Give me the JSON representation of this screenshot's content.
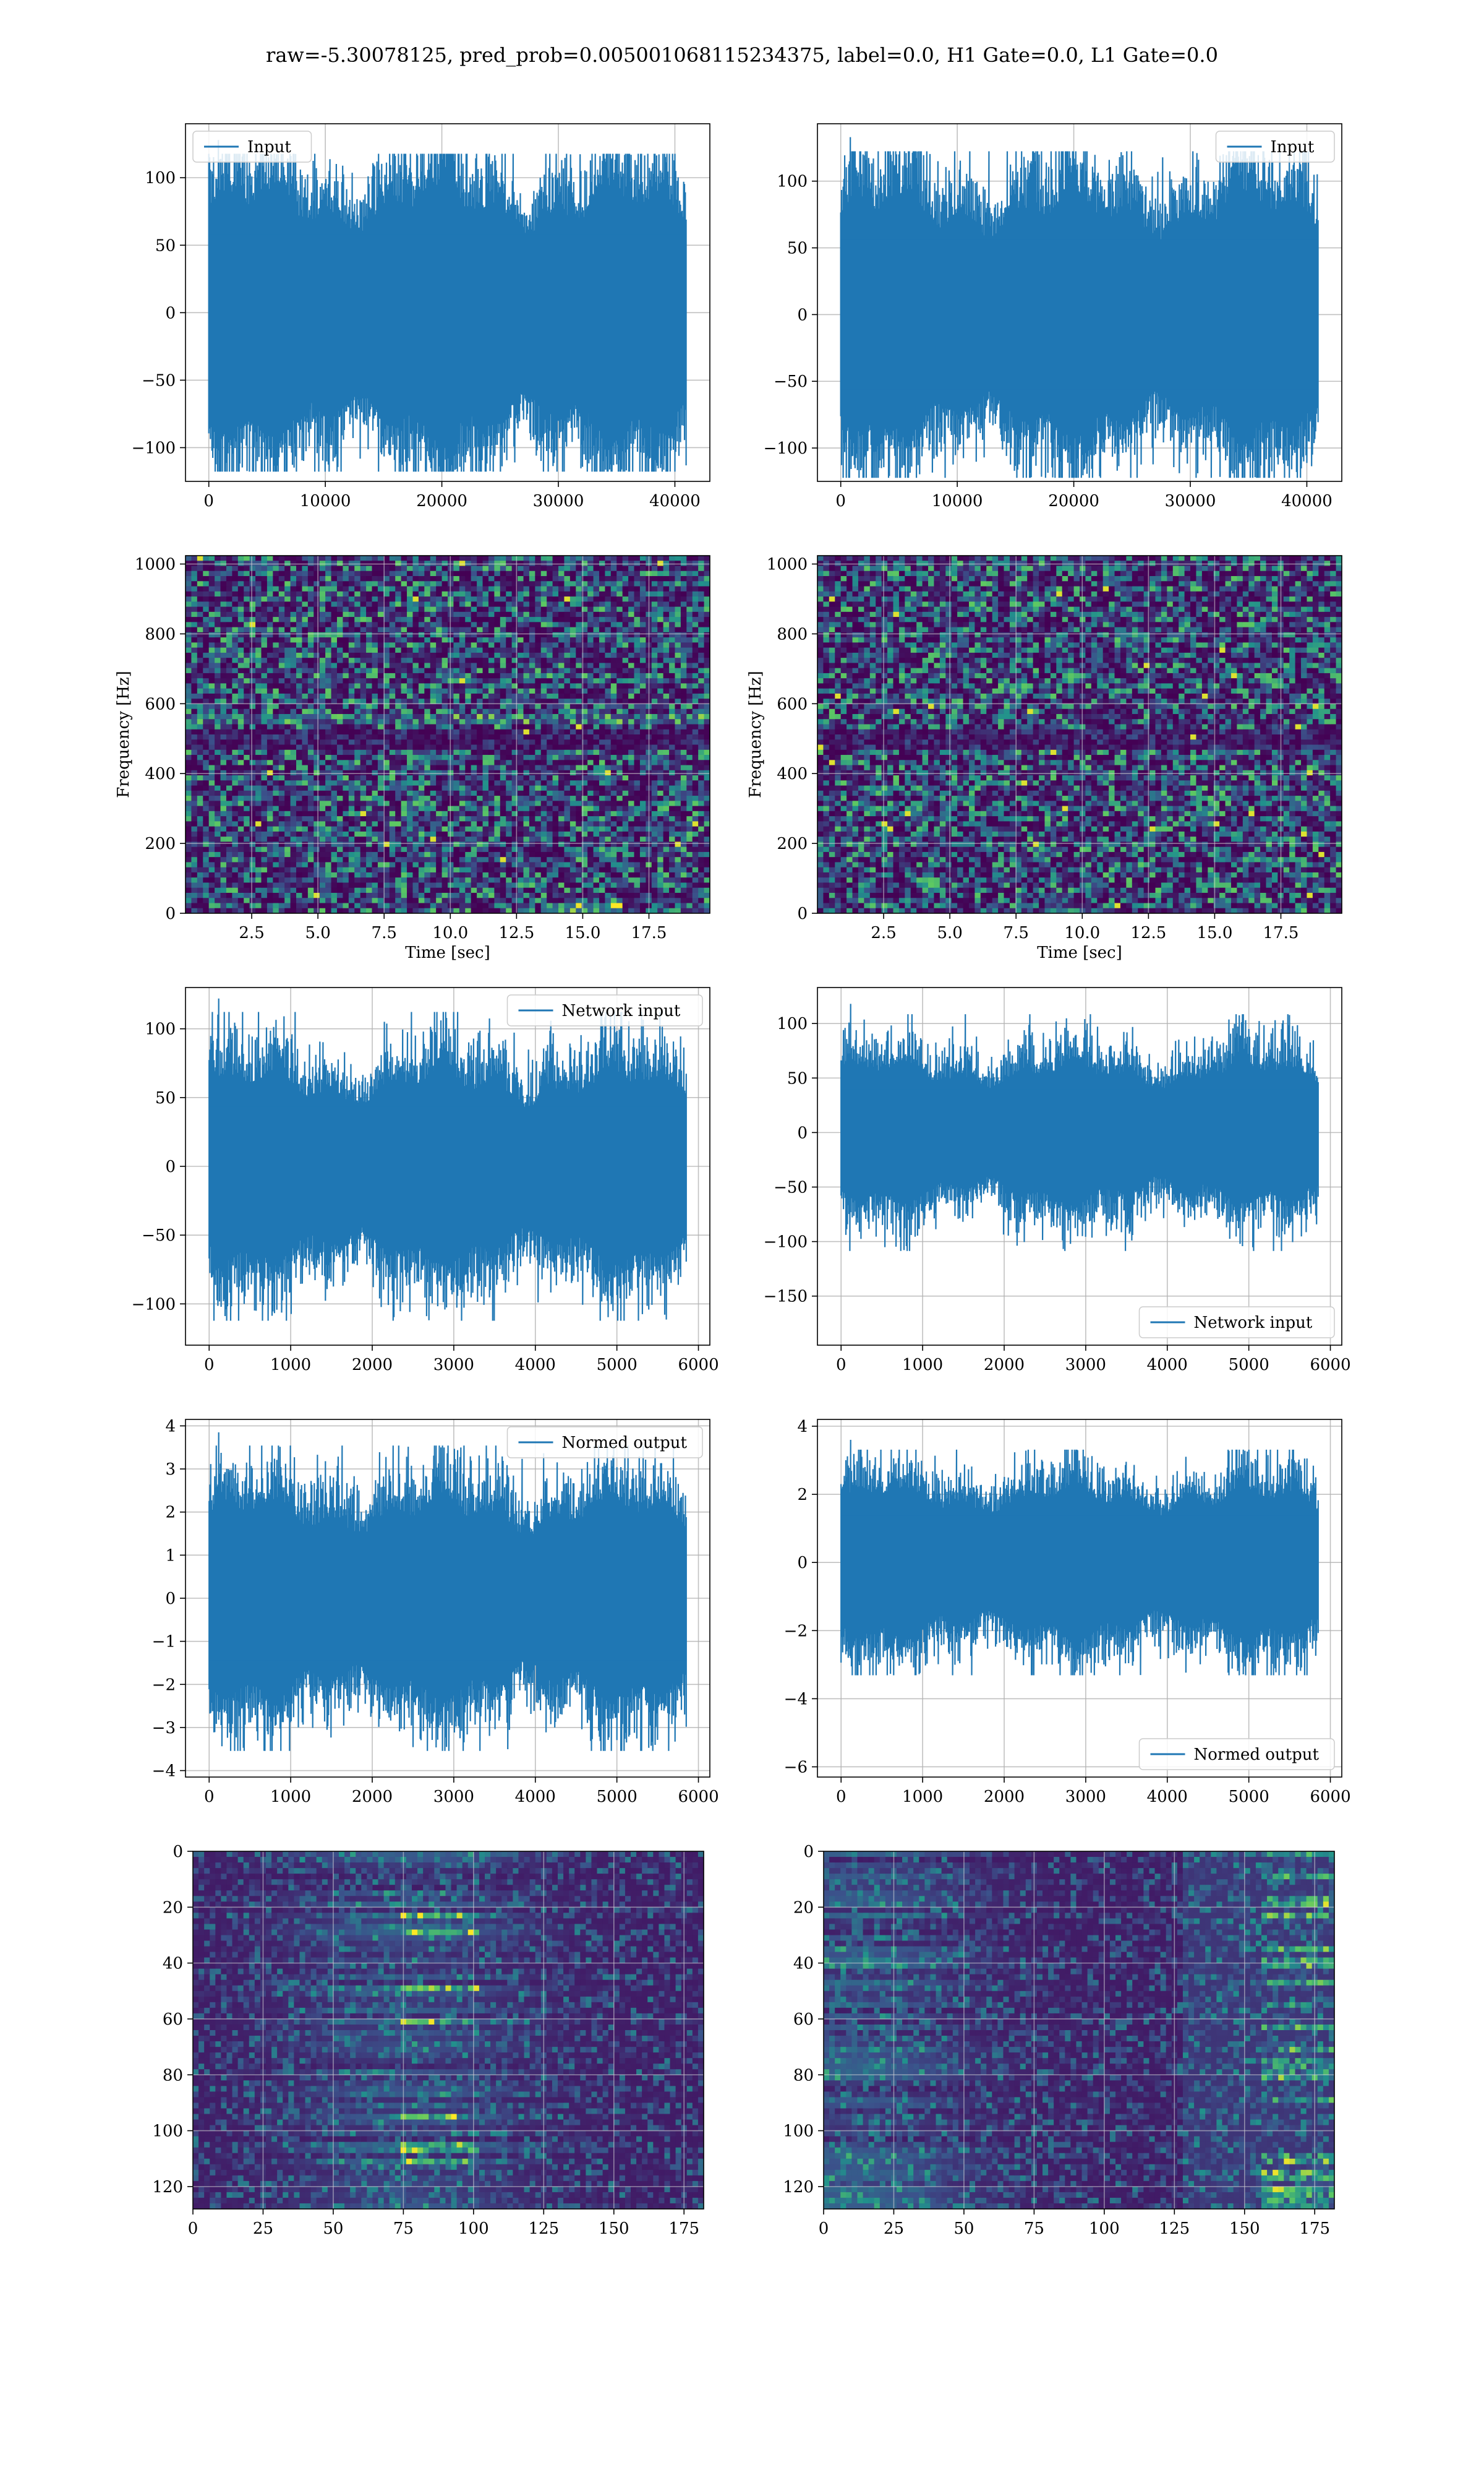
{
  "figure": {
    "title": "raw=-5.30078125, pred_prob=0.005001068115234375, label=0.0, H1 Gate=0.0, L1 Gate=0.0"
  },
  "colors": {
    "line": "#1f77b4",
    "grid": "#b0b0b0",
    "viridis_dark": "#440154",
    "viridis_mid": "#21918c",
    "viridis_bright": "#fde725"
  },
  "chart_data": [
    {
      "id": "h1-input",
      "type": "line",
      "style": "noise",
      "xlim": [
        -2000,
        43000
      ],
      "ylim": [
        -125,
        140
      ],
      "xticks": [
        0,
        10000,
        20000,
        30000,
        40000
      ],
      "yticks": [
        -100,
        -50,
        0,
        50,
        100
      ],
      "data_x": [
        0,
        40960
      ],
      "amplitude": 80,
      "spike": 128,
      "n": 600,
      "legend": "Input",
      "legend_pos": "upper-left",
      "ylabel": "",
      "xlabel": ""
    },
    {
      "id": "l1-input",
      "type": "line",
      "style": "noise",
      "xlim": [
        -2000,
        43000
      ],
      "ylim": [
        -125,
        143
      ],
      "xticks": [
        0,
        10000,
        20000,
        30000,
        40000
      ],
      "yticks": [
        -100,
        -50,
        0,
        50,
        100
      ],
      "data_x": [
        0,
        40960
      ],
      "amplitude": 78,
      "spike": 133,
      "n": 600,
      "legend": "Input",
      "legend_pos": "upper-right",
      "ylabel": "",
      "xlabel": ""
    },
    {
      "id": "h1-spectrogram",
      "type": "heatmap",
      "style": "spectrogram",
      "xlim": [
        0,
        19.8
      ],
      "ylim": [
        0,
        1024
      ],
      "xticks": [
        2.5,
        5.0,
        7.5,
        10.0,
        12.5,
        15.0,
        17.5
      ],
      "xtick_labels": [
        "2.5",
        "5.0",
        "7.5",
        "10.0",
        "12.5",
        "15.0",
        "17.5"
      ],
      "yticks": [
        0,
        200,
        400,
        600,
        800,
        1000
      ],
      "cols": 90,
      "rows": 70,
      "xlabel": "Time [sec]",
      "ylabel": "Frequency [Hz]"
    },
    {
      "id": "l1-spectrogram",
      "type": "heatmap",
      "style": "spectrogram",
      "xlim": [
        0,
        19.8
      ],
      "ylim": [
        0,
        1024
      ],
      "xticks": [
        2.5,
        5.0,
        7.5,
        10.0,
        12.5,
        15.0,
        17.5
      ],
      "xtick_labels": [
        "2.5",
        "5.0",
        "7.5",
        "10.0",
        "12.5",
        "15.0",
        "17.5"
      ],
      "yticks": [
        0,
        200,
        400,
        600,
        800,
        1000
      ],
      "cols": 90,
      "rows": 70,
      "xlabel": "Time [sec]",
      "ylabel": "Frequency [Hz]"
    },
    {
      "id": "h1-network-input",
      "type": "line",
      "style": "noise",
      "xlim": [
        -290,
        6140
      ],
      "ylim": [
        -130,
        130
      ],
      "xticks": [
        0,
        1000,
        2000,
        3000,
        4000,
        5000,
        6000
      ],
      "yticks": [
        -100,
        -50,
        0,
        50,
        100
      ],
      "data_x": [
        0,
        5850
      ],
      "amplitude": 60,
      "spike": 122,
      "n": 600,
      "legend": "Network input",
      "legend_pos": "upper-right",
      "ylabel": "",
      "xlabel": ""
    },
    {
      "id": "l1-network-input",
      "type": "line",
      "style": "noise",
      "xlim": [
        -290,
        6140
      ],
      "ylim": [
        -195,
        133
      ],
      "xticks": [
        0,
        1000,
        2000,
        3000,
        4000,
        5000,
        6000
      ],
      "yticks": [
        -150,
        -100,
        -50,
        0,
        50,
        100
      ],
      "data_x": [
        0,
        5850
      ],
      "amplitude": 55,
      "spike": 118,
      "n": 600,
      "legend": "Network input",
      "legend_pos": "lower-right",
      "ylabel": "",
      "xlabel": ""
    },
    {
      "id": "h1-normed-output",
      "type": "line",
      "style": "noise",
      "xlim": [
        -290,
        6140
      ],
      "ylim": [
        -4.15,
        4.15
      ],
      "xticks": [
        0,
        1000,
        2000,
        3000,
        4000,
        5000,
        6000
      ],
      "yticks": [
        -4,
        -3,
        -2,
        -1,
        0,
        1,
        2,
        3,
        4
      ],
      "data_x": [
        0,
        5850
      ],
      "amplitude": 2.0,
      "spike": 3.85,
      "n": 600,
      "legend": "Normed output",
      "legend_pos": "upper-right",
      "ylabel": "",
      "xlabel": ""
    },
    {
      "id": "l1-normed-output",
      "type": "line",
      "style": "noise",
      "xlim": [
        -290,
        6140
      ],
      "ylim": [
        -6.3,
        4.2
      ],
      "xticks": [
        0,
        1000,
        2000,
        3000,
        4000,
        5000,
        6000
      ],
      "yticks": [
        -6,
        -4,
        -2,
        0,
        2,
        4
      ],
      "data_x": [
        0,
        5850
      ],
      "amplitude": 1.9,
      "spike": 3.6,
      "n": 600,
      "legend": "Normed output",
      "legend_pos": "lower-right",
      "ylabel": "",
      "xlabel": ""
    },
    {
      "id": "h1-feature-map",
      "type": "heatmap",
      "style": "featuremap",
      "xlim": [
        0,
        182
      ],
      "ylim": [
        128,
        0
      ],
      "xticks": [
        0,
        25,
        50,
        75,
        100,
        125,
        150,
        175
      ],
      "yticks": [
        0,
        20,
        40,
        60,
        80,
        100,
        120
      ],
      "cols": 91,
      "rows": 64,
      "xlabel": "",
      "ylabel": ""
    },
    {
      "id": "l1-feature-map",
      "type": "heatmap",
      "style": "featuremap",
      "xlim": [
        0,
        182
      ],
      "ylim": [
        128,
        0
      ],
      "xticks": [
        0,
        25,
        50,
        75,
        100,
        125,
        150,
        175
      ],
      "yticks": [
        0,
        20,
        40,
        60,
        80,
        100,
        120
      ],
      "cols": 91,
      "rows": 64,
      "xlabel": "",
      "ylabel": ""
    }
  ]
}
